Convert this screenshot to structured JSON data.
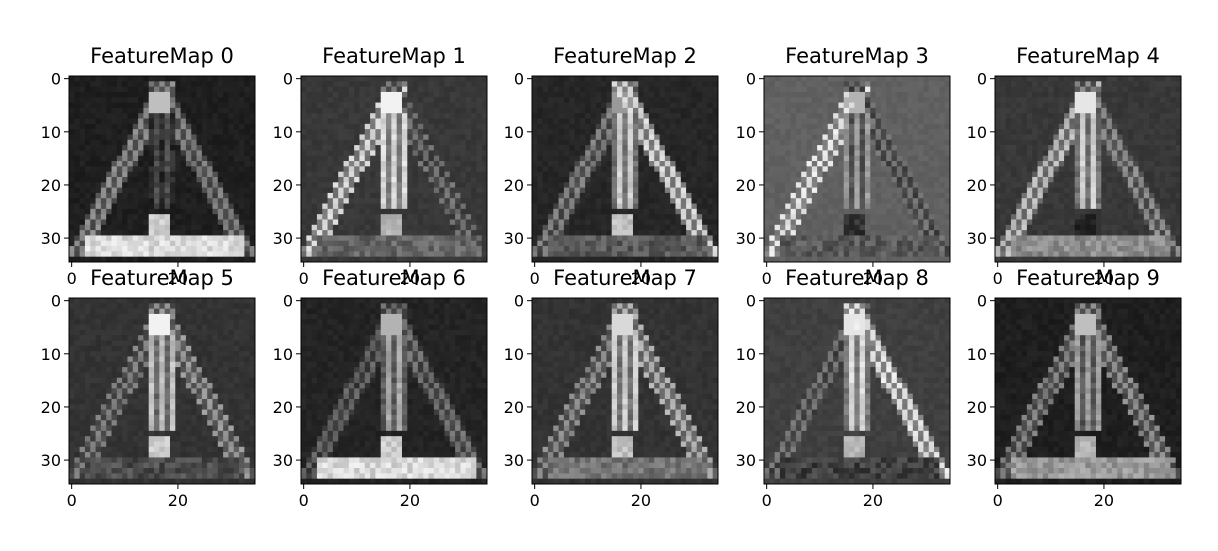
{
  "figure": {
    "background": "#ffffff",
    "colormap": "gray",
    "image_size": 35
  },
  "chart_data": {
    "type": "heatmap",
    "layout": "2x5 grid of grayscale feature-map images",
    "panels": [
      {
        "title": "FeatureMap 0",
        "variant": 0
      },
      {
        "title": "FeatureMap 1",
        "variant": 1
      },
      {
        "title": "FeatureMap 2",
        "variant": 2
      },
      {
        "title": "FeatureMap 3",
        "variant": 3
      },
      {
        "title": "FeatureMap 4",
        "variant": 4
      },
      {
        "title": "FeatureMap 5",
        "variant": 5
      },
      {
        "title": "FeatureMap 6",
        "variant": 6
      },
      {
        "title": "FeatureMap 7",
        "variant": 7
      },
      {
        "title": "FeatureMap 8",
        "variant": 8
      },
      {
        "title": "FeatureMap 9",
        "variant": 9
      }
    ],
    "xticks": [
      0,
      20
    ],
    "yticks": [
      0,
      10,
      20,
      30
    ],
    "xlim": [
      -0.5,
      34.5
    ],
    "ylim": [
      34.5,
      -0.5
    ],
    "subject": "triangular warning sign with exclamation mark"
  }
}
